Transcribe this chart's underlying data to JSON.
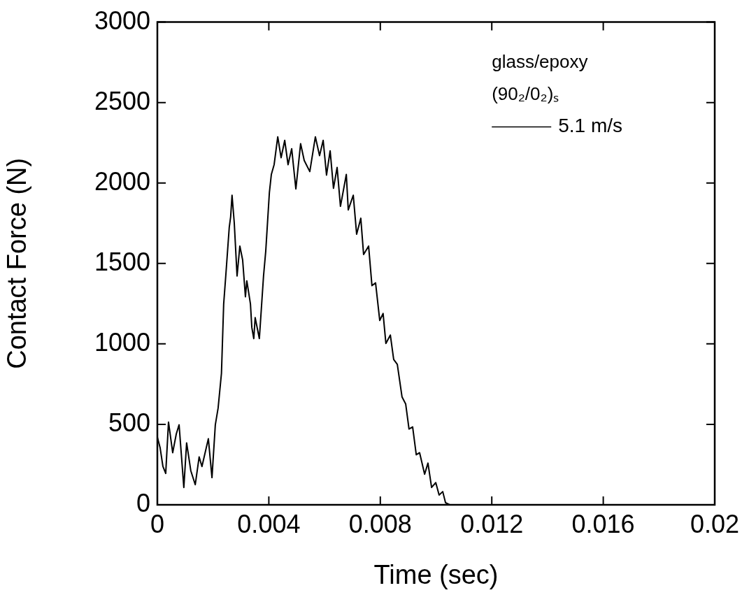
{
  "chart_data": {
    "type": "line",
    "xlabel": "Time (sec)",
    "ylabel": "Contact Force (N)",
    "legend_title": "glass/epoxy\n(90₂/0₂)ₛ",
    "legend": "top right",
    "grid": false,
    "marker": "none",
    "line_style": "solid",
    "xlim": [
      0,
      0.02
    ],
    "xticks": [
      0,
      0.004,
      0.008,
      0.012,
      0.016,
      0.02
    ],
    "ylim": [
      0,
      3000
    ],
    "yticks": [
      0,
      500,
      1000,
      1500,
      2000,
      2500,
      3000
    ],
    "series": [
      {
        "name": "5.1 m/s",
        "color": "#000000",
        "x": [
          0,
          0.0001,
          0.0002,
          0.0003,
          0.0004,
          0.00055,
          0.00068,
          0.00078,
          0.00095,
          0.00105,
          0.0012,
          0.00136,
          0.0015,
          0.0016,
          0.00183,
          0.00196,
          0.00208,
          0.00218,
          0.0023,
          0.00238,
          0.00246,
          0.00258,
          0.00263,
          0.00268,
          0.00276,
          0.00286,
          0.00296,
          0.00306,
          0.00316,
          0.00321,
          0.00334,
          0.00339,
          0.00346,
          0.00351,
          0.00366,
          0.00381,
          0.00389,
          0.00402,
          0.00409,
          0.00419,
          0.00432,
          0.00444,
          0.00457,
          0.00469,
          0.00482,
          0.00497,
          0.00514,
          0.00527,
          0.00547,
          0.00567,
          0.00582,
          0.00595,
          0.00607,
          0.0062,
          0.00632,
          0.00645,
          0.00657,
          0.00678,
          0.00685,
          0.00703,
          0.00715,
          0.0073,
          0.0074,
          0.00758,
          0.0077,
          0.00783,
          0.00798,
          0.0081,
          0.0082,
          0.00836,
          0.00848,
          0.00861,
          0.00878,
          0.00891,
          0.00903,
          0.00916,
          0.00929,
          0.00941,
          0.00959,
          0.00971,
          0.00984,
          0.00999,
          0.01011,
          0.01024,
          0.01034,
          0.01049
        ],
        "values": [
          420,
          354,
          238,
          195,
          514,
          324,
          441,
          497,
          108,
          385,
          212,
          125,
          298,
          238,
          411,
          169,
          497,
          601,
          817,
          1249,
          1435,
          1725,
          1790,
          1924,
          1751,
          1422,
          1608,
          1522,
          1293,
          1392,
          1249,
          1102,
          1033,
          1163,
          1033,
          1422,
          1578,
          1941,
          2053,
          2114,
          2287,
          2157,
          2265,
          2114,
          2213,
          1963,
          2244,
          2140,
          2071,
          2287,
          2170,
          2265,
          2049,
          2200,
          1967,
          2097,
          1855,
          2053,
          1833,
          1924,
          1682,
          1781,
          1556,
          1608,
          1362,
          1379,
          1146,
          1189,
          1003,
          1055,
          903,
          873,
          670,
          627,
          471,
          484,
          311,
          324,
          190,
          259,
          108,
          138,
          61,
          82,
          13,
          0
        ]
      }
    ]
  }
}
